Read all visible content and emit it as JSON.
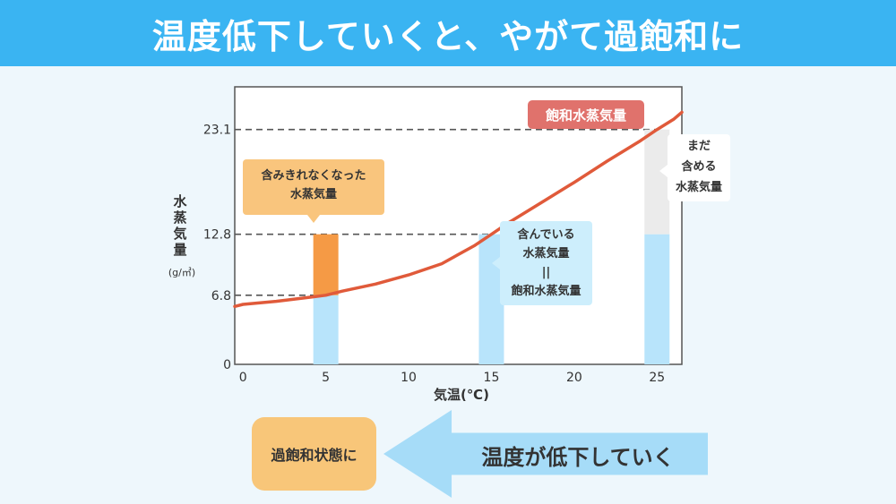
{
  "title": "温度低下していくと、やがて過飽和に",
  "colors": {
    "header": "#3ab4f2",
    "background": "#eef7fc",
    "curve": "#e05a3a",
    "contained": "#b8e4fb",
    "excess": "#f59a45",
    "remaining": "#ebebeb"
  },
  "chart_data": {
    "type": "bar",
    "xlabel": "気温(℃)",
    "ylabel": "水蒸気量",
    "yunit": "(g/㎥)",
    "xlim": [
      -0.5,
      26.5
    ],
    "ylim": [
      0,
      27.3
    ],
    "x_ticks": [
      "0",
      "5",
      "10",
      "15",
      "20",
      "25"
    ],
    "y_ticks": [
      "0",
      "6.8",
      "12.8",
      "23.1"
    ],
    "y_tick_values": [
      0,
      6.8,
      12.8,
      23.1
    ],
    "saturation_curve": {
      "name": "飽和水蒸気量",
      "x": [
        -0.5,
        0,
        2,
        4,
        5,
        6,
        8,
        10,
        12,
        14,
        15,
        16,
        18,
        20,
        22,
        24,
        25,
        26,
        26.5
      ],
      "y": [
        5.7,
        5.9,
        6.2,
        6.6,
        6.8,
        7.2,
        7.9,
        8.8,
        9.9,
        11.7,
        12.8,
        13.9,
        15.9,
        17.9,
        20.0,
        22.0,
        23.1,
        24.1,
        24.8
      ]
    },
    "bars": [
      {
        "x": 5,
        "contained": 6.8,
        "excess": 6.0,
        "remaining": 0
      },
      {
        "x": 15,
        "contained": 12.8,
        "excess": 0,
        "remaining": 0
      },
      {
        "x": 25,
        "contained": 12.8,
        "excess": 0,
        "remaining": 10.3
      }
    ],
    "reference_lines": [
      6.8,
      12.8,
      23.1
    ]
  },
  "annotations": {
    "saturation_label": "飽和水蒸気量",
    "over_label": [
      "含みきれなくなった",
      "水蒸気量"
    ],
    "contain_label": [
      "含んでいる",
      "水蒸気量",
      "||",
      "飽和水蒸気量"
    ],
    "more_label": [
      "まだ",
      "含める",
      "水蒸気量"
    ]
  },
  "bottom": {
    "box_label": "過飽和状態に",
    "arrow_label": "温度が低下していく"
  }
}
